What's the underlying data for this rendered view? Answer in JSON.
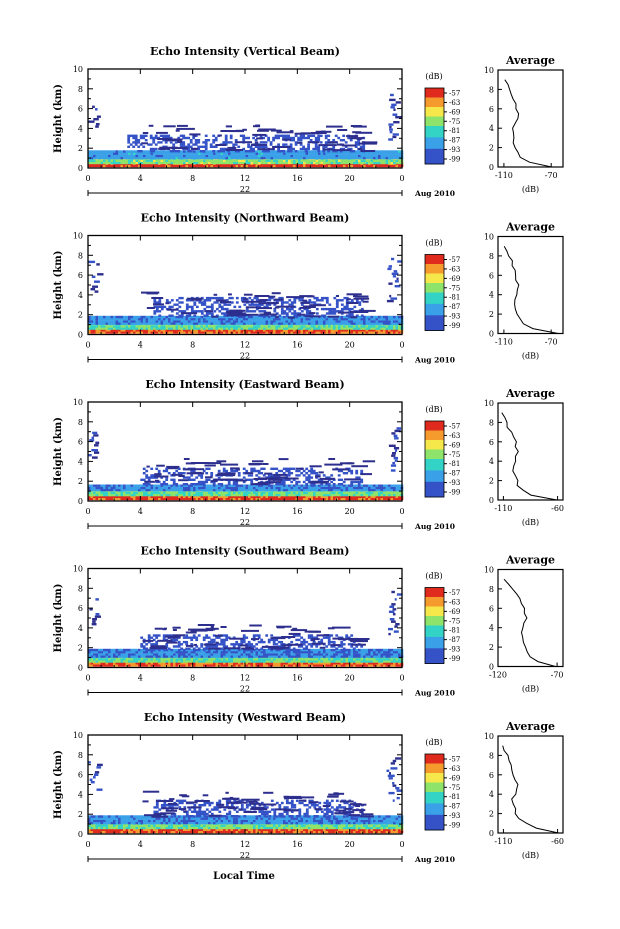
{
  "figure": {
    "bottom_xlabel": "Local Time"
  },
  "chart_data": [
    {
      "type": "heatmap",
      "title": "Echo Intensity (Vertical Beam)",
      "ylabel": "Height (km)",
      "ylim": [
        0,
        10
      ],
      "yticks": [
        "0",
        "2",
        "4",
        "6",
        "8",
        "10"
      ],
      "xlim": [
        0,
        24
      ],
      "xticks": [
        "0",
        "4",
        "8",
        "12",
        "16",
        "20",
        "0"
      ],
      "day_label": "22",
      "date_label": "Aug 2010",
      "colorbar": {
        "unit": "(dB)",
        "ticks": [
          "-57",
          "-63",
          "-69",
          "-75",
          "-81",
          "-87",
          "-93",
          "-99"
        ],
        "min": -99,
        "max": -57
      },
      "layers": [
        {
          "y_range": [
            0.1,
            0.4
          ],
          "x_range": [
            0,
            24
          ],
          "level": -60
        },
        {
          "y_range": [
            0.4,
            0.9
          ],
          "x_range": [
            0,
            24
          ],
          "level": -76
        },
        {
          "y_range": [
            0.9,
            1.6
          ],
          "x_range": [
            0,
            24
          ],
          "level": -88
        },
        {
          "y_range": [
            1.6,
            3.2
          ],
          "x_range": [
            3,
            21
          ],
          "level": -97
        }
      ],
      "high_echo": [
        {
          "x_range": [
            0,
            1
          ],
          "y_range": [
            4.3,
            6.6
          ]
        },
        {
          "x_range": [
            22.8,
            24
          ],
          "y_range": [
            3.0,
            7.7
          ]
        }
      ],
      "profile": {
        "title": "Average",
        "xlabel": "(dB)",
        "xlim": [
          -115,
          -60
        ],
        "xticks": [
          -110,
          -70
        ],
        "ylim": [
          0,
          10
        ],
        "heights": [
          0,
          0.5,
          1,
          1.5,
          2,
          2.5,
          3,
          3.5,
          4,
          4.5,
          5,
          5.5,
          6,
          6.5,
          7,
          7.5,
          8,
          8.5,
          9
        ],
        "values": [
          -70,
          -88,
          -95,
          -99,
          -101,
          -102,
          -103,
          -103,
          -102,
          -100,
          -98,
          -99,
          -100,
          -99,
          -102,
          -104,
          -106,
          -108,
          -110
        ]
      }
    },
    {
      "type": "heatmap",
      "title": "Echo Intensity (Northward Beam)",
      "ylabel": "Height (km)",
      "ylim": [
        0,
        10
      ],
      "yticks": [
        "0",
        "2",
        "4",
        "6",
        "8",
        "10"
      ],
      "xlim": [
        0,
        24
      ],
      "xticks": [
        "0",
        "4",
        "8",
        "12",
        "16",
        "20",
        "0"
      ],
      "day_label": "22",
      "date_label": "Aug 2010",
      "colorbar": {
        "unit": "(dB)",
        "ticks": [
          "-57",
          "-63",
          "-69",
          "-75",
          "-81",
          "-87",
          "-93",
          "-99"
        ],
        "min": -99,
        "max": -57
      },
      "layers": [
        {
          "y_range": [
            0.1,
            0.5
          ],
          "x_range": [
            0,
            24
          ],
          "level": -62
        },
        {
          "y_range": [
            0.5,
            1.0
          ],
          "x_range": [
            0,
            24
          ],
          "level": -78
        },
        {
          "y_range": [
            1.0,
            1.8
          ],
          "x_range": [
            0,
            24
          ],
          "level": -90
        },
        {
          "y_range": [
            1.8,
            3.6
          ],
          "x_range": [
            5,
            21
          ],
          "level": -97
        }
      ],
      "high_echo": [
        {
          "x_range": [
            0,
            1
          ],
          "y_range": [
            4.2,
            7.5
          ]
        },
        {
          "x_range": [
            22.8,
            24
          ],
          "y_range": [
            3.5,
            8.0
          ]
        }
      ],
      "profile": {
        "title": "Average",
        "xlabel": "(dB)",
        "xlim": [
          -115,
          -60
        ],
        "xticks": [
          -110,
          -70
        ],
        "ylim": [
          0,
          10
        ],
        "heights": [
          0,
          0.5,
          1,
          1.5,
          2,
          2.5,
          3,
          3.5,
          4,
          4.5,
          5,
          5.5,
          6,
          6.5,
          7,
          7.5,
          8,
          8.5,
          9
        ],
        "values": [
          -64,
          -85,
          -93,
          -97,
          -99,
          -101,
          -102,
          -101,
          -100,
          -99,
          -98,
          -99,
          -100,
          -101,
          -102,
          -104,
          -106,
          -108,
          -111
        ]
      }
    },
    {
      "type": "heatmap",
      "title": "Echo Intensity (Eastward Beam)",
      "ylabel": "Height (km)",
      "ylim": [
        0,
        10
      ],
      "yticks": [
        "0",
        "2",
        "4",
        "6",
        "8",
        "10"
      ],
      "xlim": [
        0,
        24
      ],
      "xticks": [
        "0",
        "4",
        "8",
        "12",
        "16",
        "20",
        "0"
      ],
      "day_label": "22",
      "date_label": "Aug 2010",
      "colorbar": {
        "unit": "(dB)",
        "ticks": [
          "-57",
          "-63",
          "-69",
          "-75",
          "-81",
          "-87",
          "-93",
          "-99"
        ],
        "min": -99,
        "max": -57
      },
      "layers": [
        {
          "y_range": [
            0.1,
            0.5
          ],
          "x_range": [
            0,
            24
          ],
          "level": -60
        },
        {
          "y_range": [
            0.5,
            1.0
          ],
          "x_range": [
            0,
            24
          ],
          "level": -77
        },
        {
          "y_range": [
            1.0,
            1.6
          ],
          "x_range": [
            0,
            24
          ],
          "level": -90
        },
        {
          "y_range": [
            1.6,
            3.2
          ],
          "x_range": [
            4,
            21
          ],
          "level": -97
        }
      ],
      "high_echo": [
        {
          "x_range": [
            0,
            1
          ],
          "y_range": [
            4.5,
            7.2
          ]
        },
        {
          "x_range": [
            22.8,
            24
          ],
          "y_range": [
            3.2,
            7.6
          ]
        }
      ],
      "profile": {
        "title": "Average",
        "xlabel": "(dB)",
        "xlim": [
          -115,
          -55
        ],
        "xticks": [
          -110,
          -60
        ],
        "ylim": [
          0,
          10
        ],
        "heights": [
          0,
          0.5,
          1,
          1.5,
          2,
          2.5,
          3,
          3.5,
          4,
          4.5,
          5,
          5.5,
          6,
          6.5,
          7,
          7.5,
          8,
          8.5,
          9
        ],
        "values": [
          -62,
          -85,
          -92,
          -96,
          -98,
          -99,
          -100,
          -100,
          -99,
          -98,
          -97,
          -98,
          -99,
          -101,
          -103,
          -106,
          -108,
          -110,
          -112
        ]
      }
    },
    {
      "type": "heatmap",
      "title": "Echo Intensity (Southward Beam)",
      "ylabel": "Height (km)",
      "ylim": [
        0,
        10
      ],
      "yticks": [
        "0",
        "2",
        "4",
        "6",
        "8",
        "10"
      ],
      "xlim": [
        0,
        24
      ],
      "xticks": [
        "0",
        "4",
        "8",
        "12",
        "16",
        "20",
        "0"
      ],
      "day_label": "22",
      "date_label": "Aug 2010",
      "colorbar": {
        "unit": "(dB)",
        "ticks": [
          "-57",
          "-63",
          "-69",
          "-75",
          "-81",
          "-87",
          "-93",
          "-99"
        ],
        "min": -99,
        "max": -57
      },
      "layers": [
        {
          "y_range": [
            0.1,
            0.5
          ],
          "x_range": [
            0,
            24
          ],
          "level": -62
        },
        {
          "y_range": [
            0.5,
            1.0
          ],
          "x_range": [
            0,
            24
          ],
          "level": -78
        },
        {
          "y_range": [
            1.0,
            1.8
          ],
          "x_range": [
            0,
            24
          ],
          "level": -91
        },
        {
          "y_range": [
            1.8,
            3.2
          ],
          "x_range": [
            4,
            21
          ],
          "level": -97
        }
      ],
      "high_echo": [
        {
          "x_range": [
            0,
            1
          ],
          "y_range": [
            4.5,
            7.4
          ]
        },
        {
          "x_range": [
            22.8,
            24
          ],
          "y_range": [
            3.5,
            7.8
          ]
        }
      ],
      "profile": {
        "title": "Average",
        "xlabel": "(dB)",
        "xlim": [
          -120,
          -65
        ],
        "xticks": [
          -120,
          -70
        ],
        "ylim": [
          0,
          10
        ],
        "heights": [
          0,
          0.5,
          1,
          1.5,
          2,
          2.5,
          3,
          3.5,
          4,
          4.5,
          5,
          5.5,
          6,
          6.5,
          7,
          7.5,
          8,
          8.5,
          9
        ],
        "values": [
          -72,
          -86,
          -93,
          -96,
          -97,
          -98,
          -99,
          -100,
          -99,
          -97,
          -96,
          -97,
          -99,
          -100,
          -102,
          -105,
          -108,
          -112,
          -116
        ]
      }
    },
    {
      "type": "heatmap",
      "title": "Echo Intensity (Westward Beam)",
      "ylabel": "Height (km)",
      "ylim": [
        0,
        10
      ],
      "yticks": [
        "0",
        "2",
        "4",
        "6",
        "8",
        "10"
      ],
      "xlim": [
        0,
        24
      ],
      "xticks": [
        "0",
        "4",
        "8",
        "12",
        "16",
        "20",
        "0"
      ],
      "day_label": "22",
      "date_label": "Aug 2010",
      "colorbar": {
        "unit": "(dB)",
        "ticks": [
          "-57",
          "-63",
          "-69",
          "-75",
          "-81",
          "-87",
          "-93",
          "-99"
        ],
        "min": -99,
        "max": -57
      },
      "layers": [
        {
          "y_range": [
            0.1,
            0.5
          ],
          "x_range": [
            0,
            24
          ],
          "level": -61
        },
        {
          "y_range": [
            0.5,
            1.0
          ],
          "x_range": [
            0,
            24
          ],
          "level": -77
        },
        {
          "y_range": [
            1.0,
            1.7
          ],
          "x_range": [
            0,
            24
          ],
          "level": -90
        },
        {
          "y_range": [
            1.7,
            3.4
          ],
          "x_range": [
            5,
            21
          ],
          "level": -97
        }
      ],
      "high_echo": [
        {
          "x_range": [
            0,
            1
          ],
          "y_range": [
            4.6,
            7.6
          ]
        },
        {
          "x_range": [
            22.8,
            24
          ],
          "y_range": [
            3.5,
            7.8
          ]
        }
      ],
      "profile": {
        "title": "Average",
        "xlabel": "(dB)",
        "xlim": [
          -115,
          -55
        ],
        "xticks": [
          -110,
          -60
        ],
        "ylim": [
          0,
          10
        ],
        "heights": [
          0,
          0.5,
          1,
          1.5,
          2,
          2.5,
          3,
          3.5,
          4,
          4.5,
          5,
          5.5,
          6,
          6.5,
          7,
          7.5,
          8,
          8.5,
          9
        ],
        "values": [
          -60,
          -80,
          -90,
          -95,
          -98,
          -100,
          -101,
          -101,
          -100,
          -99,
          -98,
          -99,
          -100,
          -101,
          -103,
          -105,
          -107,
          -109,
          -111
        ]
      }
    }
  ]
}
